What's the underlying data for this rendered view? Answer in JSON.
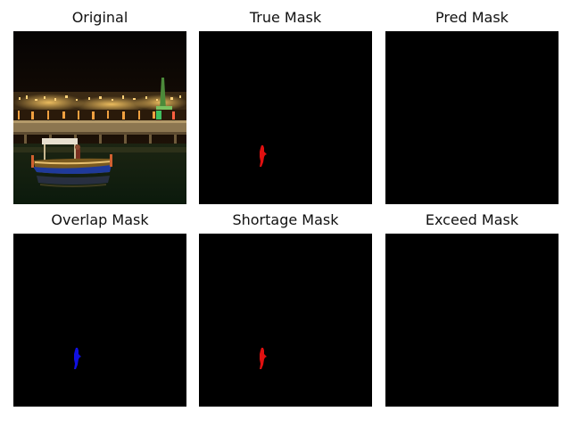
{
  "figure": {
    "panels": [
      {
        "title": "Original",
        "content": "photo"
      },
      {
        "title": "True Mask",
        "content": "mask",
        "mask_color": "#e01010"
      },
      {
        "title": "Pred Mask",
        "content": "empty"
      },
      {
        "title": "Overlap Mask",
        "content": "mask",
        "mask_color": "#1010e0"
      },
      {
        "title": "Shortage Mask",
        "content": "mask",
        "mask_color": "#e01010"
      },
      {
        "title": "Exceed Mask",
        "content": "empty"
      }
    ]
  },
  "colors": {
    "background": "#ffffff",
    "mask_background": "#000000",
    "true_mask": "#e01010",
    "overlap_mask": "#1010e0",
    "shortage_mask": "#e01010"
  }
}
